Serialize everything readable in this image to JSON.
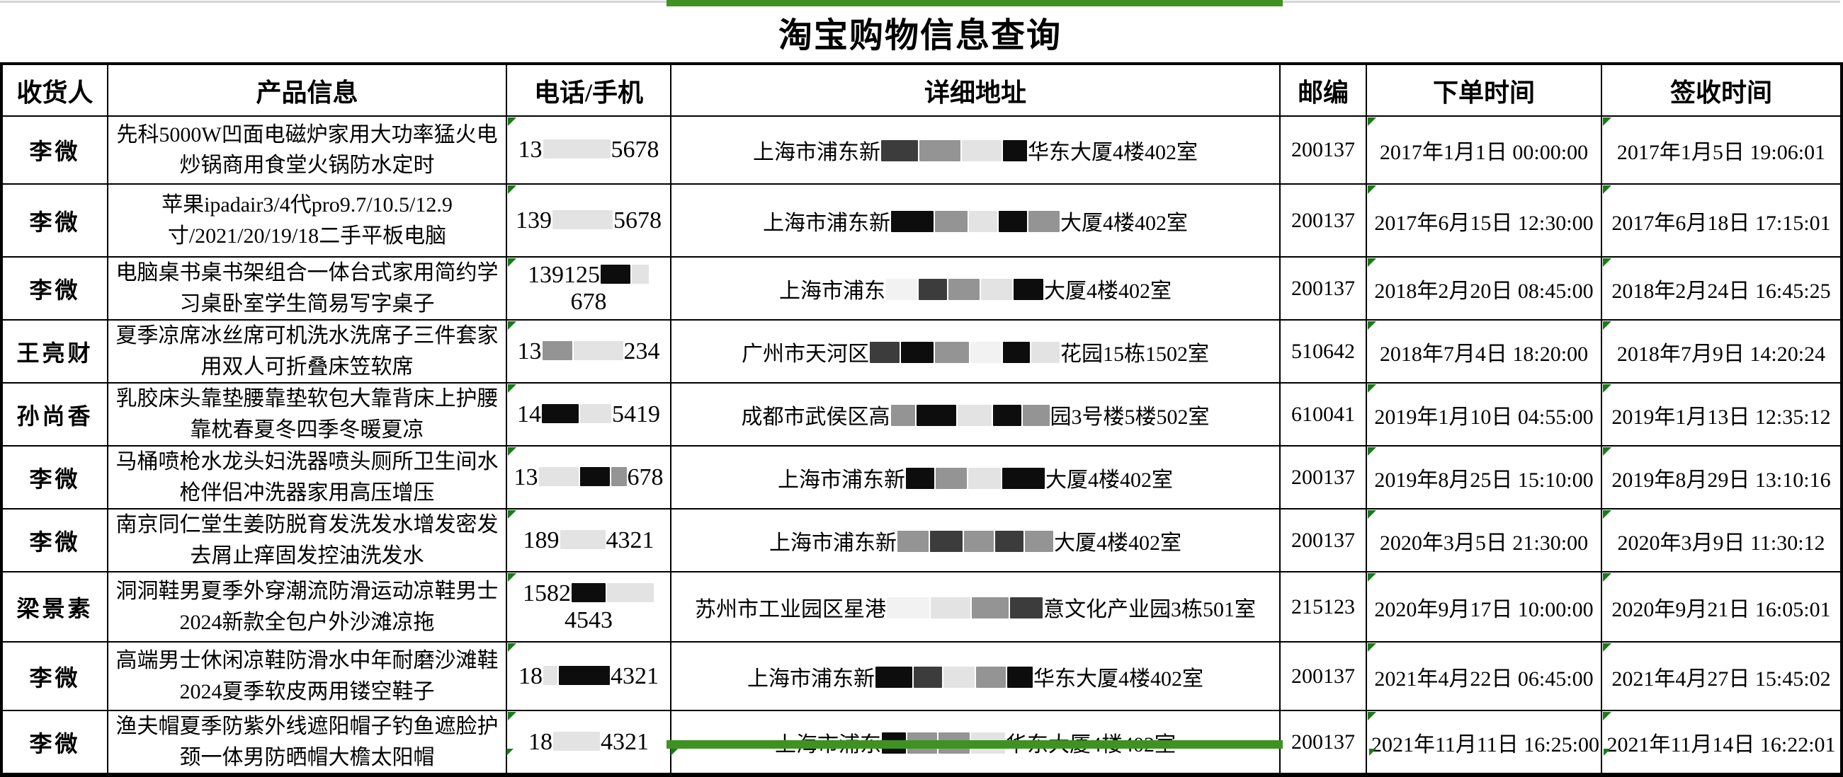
{
  "title": "淘宝购物信息查询",
  "columns": [
    "收货人",
    "产品信息",
    "电话/手机",
    "详细地址",
    "邮编",
    "下单时间",
    "签收时间"
  ],
  "accent": {
    "green_bar": "#3f9222",
    "triangle_green": "#1a7a1a"
  },
  "rows": [
    {
      "recipient": "李微",
      "product": "先科5000W凹面电磁炉家用大功率猛火电炒锅商用食堂火锅防水定时",
      "phone": {
        "left": "13",
        "right": "5678",
        "boxes": [
          {
            "w": 95,
            "c": "light"
          }
        ]
      },
      "address": {
        "left": "上海市浦东新",
        "right": "华东大厦4楼402室",
        "boxes": [
          {
            "w": 52,
            "c": "dark"
          },
          {
            "w": 58,
            "c": "gray"
          },
          {
            "w": 56,
            "c": "light"
          },
          {
            "w": 34,
            "c": "black"
          }
        ]
      },
      "postal": "200137",
      "order_time": "2017年1月1日 00:00:00",
      "sign_time": "2017年1月5日 19:06:01"
    },
    {
      "recipient": "李微",
      "product": "苹果ipadair3/4代pro9.7/10.5/12.9寸/2021/20/19/18二手平板电脑",
      "phone": {
        "left": "139",
        "right": "5678",
        "boxes": [
          {
            "w": 85,
            "c": "light"
          }
        ]
      },
      "address": {
        "left": "上海市浦东新",
        "right": "大厦4楼402室",
        "boxes": [
          {
            "w": 60,
            "c": "black"
          },
          {
            "w": 46,
            "c": "gray"
          },
          {
            "w": 40,
            "c": "light"
          },
          {
            "w": 40,
            "c": "black"
          },
          {
            "w": 44,
            "c": "gray"
          }
        ]
      },
      "postal": "200137",
      "order_time": "2017年6月15日 12:30:00",
      "sign_time": "2017年6月18日 17:15:01"
    },
    {
      "recipient": "李微",
      "product": "电脑桌书桌书架组合一体台式家用简约学习桌卧室学生简易写字桌子",
      "phone": {
        "left": "139125",
        "right": "678",
        "boxes": [
          {
            "w": 42,
            "c": "black"
          },
          {
            "w": 24,
            "c": "light"
          }
        ]
      },
      "address": {
        "left": "上海市浦东",
        "right": "大厦4楼402室",
        "boxes": [
          {
            "w": 44,
            "c": "faint"
          },
          {
            "w": 40,
            "c": "dark"
          },
          {
            "w": 44,
            "c": "gray"
          },
          {
            "w": 44,
            "c": "light"
          },
          {
            "w": 42,
            "c": "black"
          }
        ]
      },
      "postal": "200137",
      "order_time": "2018年2月20日 08:45:00",
      "sign_time": "2018年2月24日 16:45:25"
    },
    {
      "recipient": "王亮财",
      "product": "夏季凉席冰丝席可机洗水洗席子三件套家用双人可折叠床笠软席",
      "phone": {
        "left": "13",
        "right": "234",
        "boxes": [
          {
            "w": 42,
            "c": "gray"
          },
          {
            "w": 70,
            "c": "light"
          }
        ]
      },
      "address": {
        "left": "广州市天河区",
        "right": "花园15栋1502室",
        "boxes": [
          {
            "w": 42,
            "c": "dark"
          },
          {
            "w": 46,
            "c": "black"
          },
          {
            "w": 48,
            "c": "gray"
          },
          {
            "w": 44,
            "c": "faint"
          },
          {
            "w": 38,
            "c": "black"
          },
          {
            "w": 40,
            "c": "light"
          }
        ]
      },
      "postal": "510642",
      "order_time": "2018年7月4日 18:20:00",
      "sign_time": "2018年7月9日 14:20:24"
    },
    {
      "recipient": "孙尚香",
      "product": "乳胶床头靠垫腰靠垫软包大靠背床上护腰靠枕春夏冬四季冬暖夏凉",
      "phone": {
        "left": "14",
        "right": "5419",
        "boxes": [
          {
            "w": 52,
            "c": "black"
          },
          {
            "w": 44,
            "c": "light"
          }
        ]
      },
      "address": {
        "left": "成都市武侯区高",
        "right": "园3号楼5楼502室",
        "boxes": [
          {
            "w": 34,
            "c": "gray"
          },
          {
            "w": 56,
            "c": "black"
          },
          {
            "w": 48,
            "c": "light"
          },
          {
            "w": 40,
            "c": "black"
          },
          {
            "w": 38,
            "c": "gray"
          }
        ]
      },
      "postal": "610041",
      "order_time": "2019年1月10日 04:55:00",
      "sign_time": "2019年1月13日 12:35:12"
    },
    {
      "recipient": "李微",
      "product": "马桶喷枪水龙头妇洗器喷头厕所卫生间水枪伴侣冲洗器家用高压增压",
      "phone": {
        "left": "13",
        "right": "678",
        "boxes": [
          {
            "w": 56,
            "c": "light"
          },
          {
            "w": 42,
            "c": "black"
          },
          {
            "w": 22,
            "c": "gray"
          }
        ]
      },
      "address": {
        "left": "上海市浦东新",
        "right": "大厦4楼402室",
        "boxes": [
          {
            "w": 40,
            "c": "black"
          },
          {
            "w": 44,
            "c": "gray"
          },
          {
            "w": 46,
            "c": "light"
          },
          {
            "w": 60,
            "c": "black"
          }
        ]
      },
      "postal": "200137",
      "order_time": "2019年8月25日 15:10:00",
      "sign_time": "2019年8月29日 13:10:16"
    },
    {
      "recipient": "李微",
      "product": "南京同仁堂生姜防脱育发洗发水增发密发去屑止痒固发控油洗发水",
      "phone": {
        "left": "189",
        "right": "4321",
        "boxes": [
          {
            "w": 64,
            "c": "light"
          }
        ]
      },
      "address": {
        "left": "上海市浦东新",
        "right": "大厦4楼402室",
        "boxes": [
          {
            "w": 44,
            "c": "gray"
          },
          {
            "w": 46,
            "c": "dark"
          },
          {
            "w": 42,
            "c": "gray"
          },
          {
            "w": 40,
            "c": "dark"
          },
          {
            "w": 40,
            "c": "gray"
          }
        ]
      },
      "postal": "200137",
      "order_time": "2020年3月5日 21:30:00",
      "sign_time": "2020年3月9日 11:30:12"
    },
    {
      "recipient": "梁景素",
      "product": "洞洞鞋男夏季外穿潮流防滑运动凉鞋男士2024新款全包户外沙滩凉拖",
      "phone": {
        "left": "1582",
        "right": "4543",
        "boxes": [
          {
            "w": 48,
            "c": "black"
          },
          {
            "w": 66,
            "c": "light"
          }
        ]
      },
      "address": {
        "left": "苏州市工业园区星港",
        "right": "意文化产业园3栋501室",
        "boxes": [
          {
            "w": 60,
            "c": "faint"
          },
          {
            "w": 56,
            "c": "light"
          },
          {
            "w": 52,
            "c": "gray"
          },
          {
            "w": 46,
            "c": "dark"
          }
        ]
      },
      "postal": "215123",
      "order_time": "2020年9月17日 10:00:00",
      "sign_time": "2020年9月21日 16:05:01"
    },
    {
      "recipient": "李微",
      "product": "高端男士休闲凉鞋防滑水中年耐磨沙滩鞋2024夏季软皮两用镂空鞋子",
      "phone": {
        "left": "18",
        "right": "4321",
        "boxes": [
          {
            "w": 20,
            "c": "light"
          },
          {
            "w": 72,
            "c": "black"
          }
        ]
      },
      "address": {
        "left": "上海市浦东新",
        "right": "华东大厦4楼402室",
        "boxes": [
          {
            "w": 52,
            "c": "black"
          },
          {
            "w": 40,
            "c": "dark"
          },
          {
            "w": 44,
            "c": "light"
          },
          {
            "w": 42,
            "c": "gray"
          },
          {
            "w": 36,
            "c": "black"
          }
        ]
      },
      "postal": "200137",
      "order_time": "2021年4月22日 06:45:00",
      "sign_time": "2021年4月27日 15:45:02"
    },
    {
      "recipient": "李微",
      "product": "渔夫帽夏季防紫外线遮阳帽子钓鱼遮脸护颈一体男防晒帽大檐太阳帽",
      "phone": {
        "left": "18",
        "right": "4321",
        "boxes": [
          {
            "w": 66,
            "c": "light"
          }
        ]
      },
      "address": {
        "left": "上海市浦东",
        "right": "华东大厦4楼402室",
        "boxes": [
          {
            "w": 34,
            "c": "black"
          },
          {
            "w": 42,
            "c": "gray"
          },
          {
            "w": 44,
            "c": "gray"
          },
          {
            "w": 48,
            "c": "light"
          }
        ]
      },
      "postal": "200137",
      "order_time": "2021年11月11日 16:25:00",
      "sign_time": "2021年11月14日 16:22:01"
    }
  ]
}
